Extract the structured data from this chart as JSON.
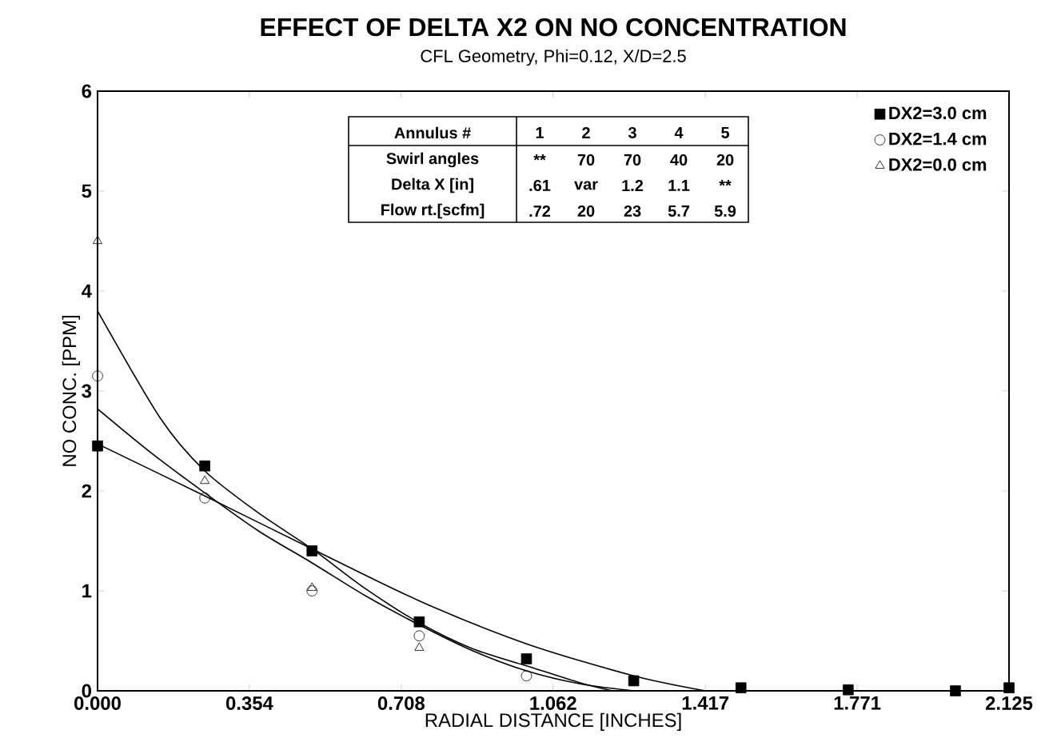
{
  "chart_data": {
    "type": "scatter",
    "title": "EFFECT OF DELTA X2 ON NO CONCENTRATION",
    "subtitle": "CFL Geometry, Phi=0.12, X/D=2.5",
    "xlabel": "RADIAL DISTANCE [INCHES]",
    "ylabel": "NO CONC. [PPM]",
    "xlim": [
      0,
      2.125
    ],
    "ylim": [
      0,
      6
    ],
    "xticks": [
      {
        "value": 0,
        "label": "0.000"
      },
      0.354,
      0.708,
      1.062,
      1.417,
      1.771,
      2.125
    ],
    "yticks": [
      0,
      1,
      2,
      3,
      4,
      5,
      6
    ],
    "grid": false,
    "legend": "top right",
    "annotations": [
      "Annulus #",
      "1",
      "2",
      "3",
      "4",
      "5",
      "Swirl angles",
      "**",
      "70",
      "70",
      "40",
      "20",
      "Delta X [in]",
      ".61",
      "var",
      "1.2",
      "1.1",
      "**",
      "Flow rt.[scfm]",
      ".72",
      "20",
      "23",
      "5.7",
      "5.9"
    ],
    "series": [
      {
        "name": "DX2=3.0 cm",
        "marker": "square",
        "color": "#000000",
        "x": [
          0,
          0.25,
          0.5,
          0.75,
          1.0,
          1.25,
          1.5,
          1.75,
          2.0,
          2.125
        ],
        "values": [
          2.45,
          2.25,
          1.4,
          0.69,
          0.32,
          0.1,
          0.03,
          0.01,
          0.0,
          0.03
        ]
      },
      {
        "name": "DX2=1.4 cm",
        "marker": "circle",
        "color": "#000000",
        "x": [
          0,
          0.25,
          0.5,
          0.75,
          1.0
        ],
        "values": [
          3.15,
          1.93,
          1.0,
          0.55,
          0.15
        ]
      },
      {
        "name": "DX2=0.0 cm",
        "marker": "triangle",
        "color": "#000000",
        "x": [
          0,
          0.25,
          0.5,
          0.75
        ],
        "values": [
          4.5,
          2.1,
          1.03,
          0.43
        ]
      },
      {
        "type": "line",
        "marker": "none",
        "color": "#000000",
        "x": [
          0,
          0.146,
          0.25,
          0.375,
          0.5,
          0.625,
          0.75,
          0.875,
          1.0,
          1.125,
          1.2
        ],
        "values": [
          3.8,
          2.73,
          2.2,
          1.78,
          1.42,
          1.02,
          0.68,
          0.42,
          0.25,
          0.08,
          0.0
        ]
      },
      {
        "type": "line",
        "marker": "none",
        "color": "#000000",
        "x": [
          0,
          0.125,
          0.25,
          0.375,
          0.5,
          0.625,
          0.75,
          0.875,
          1.0,
          1.125,
          1.25
        ],
        "values": [
          2.82,
          2.38,
          1.98,
          1.6,
          1.28,
          0.95,
          0.66,
          0.4,
          0.2,
          0.07,
          0.0
        ]
      },
      {
        "type": "line",
        "marker": "none",
        "color": "#000000",
        "x": [
          0,
          0.25,
          0.5,
          0.75,
          1.0,
          1.25,
          1.417
        ],
        "values": [
          2.47,
          1.95,
          1.42,
          0.9,
          0.47,
          0.15,
          0.0
        ]
      }
    ]
  }
}
